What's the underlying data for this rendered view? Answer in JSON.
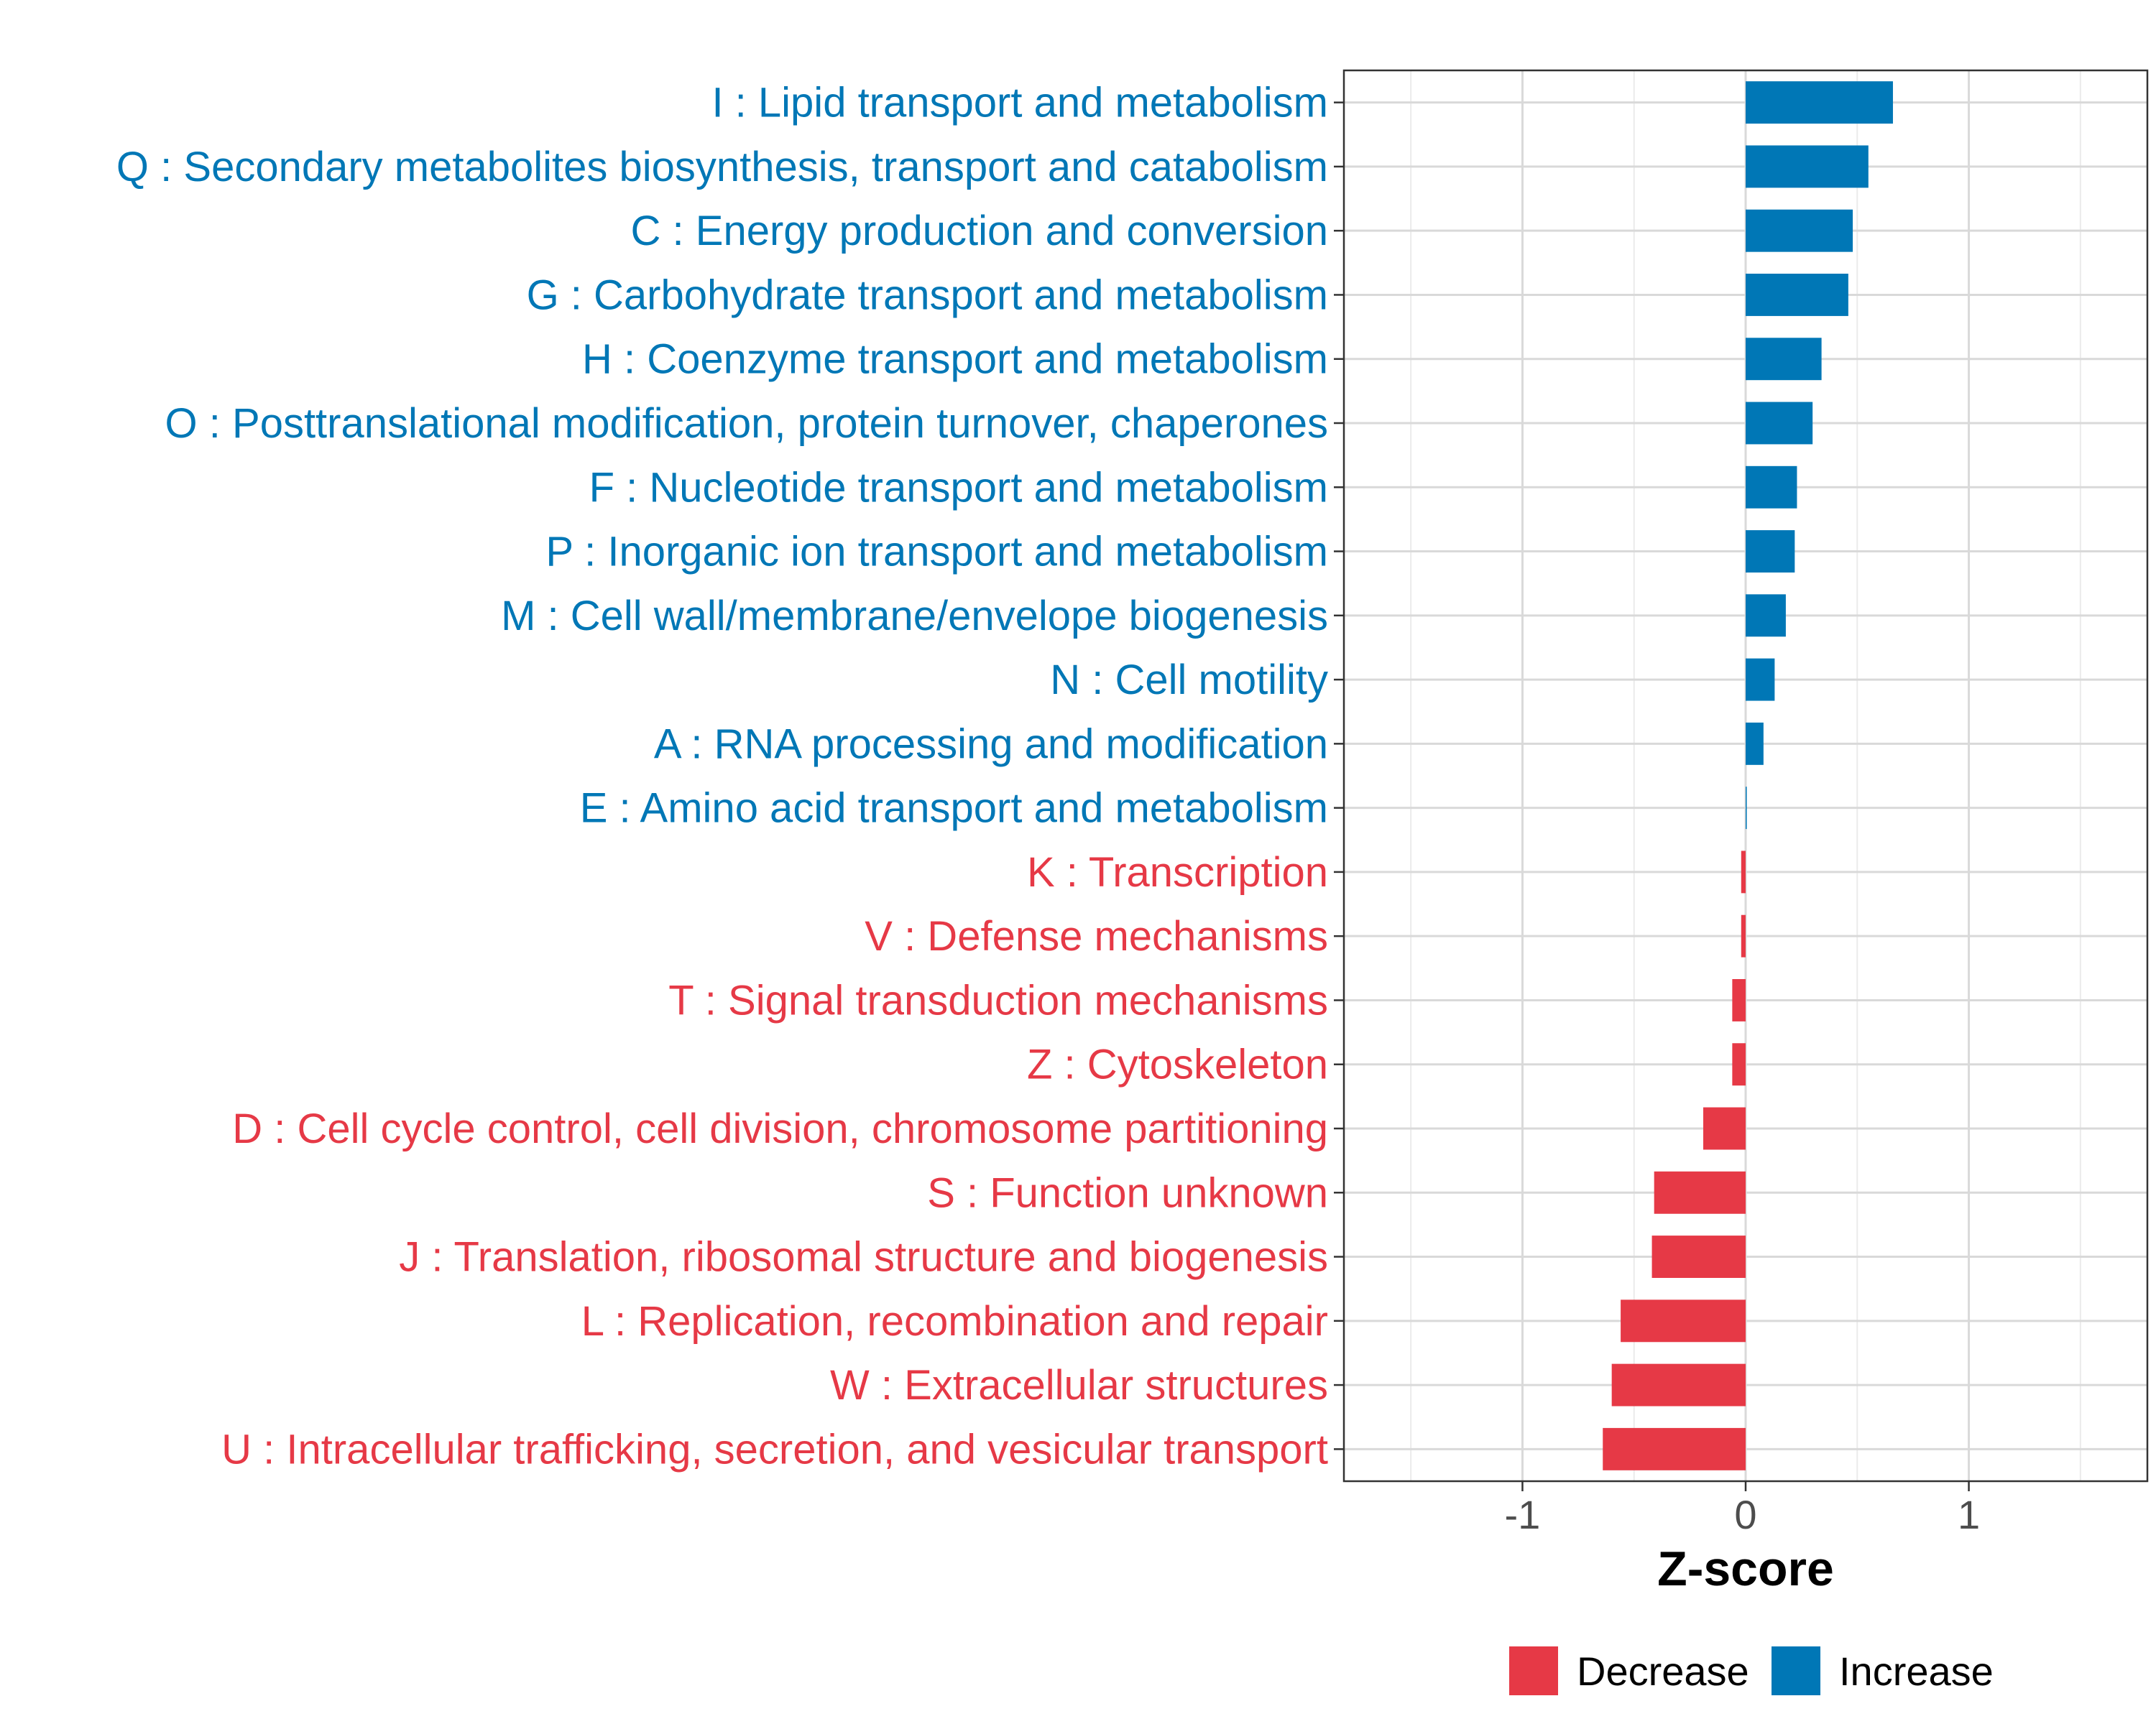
{
  "chart_data": {
    "type": "bar",
    "orientation": "horizontal",
    "xlabel": "Z-score",
    "xlim": [
      -1.8,
      1.8
    ],
    "xticks": [
      -1,
      0,
      1
    ],
    "xtick_labels": [
      "-1",
      "0",
      "1"
    ],
    "grid": true,
    "legend_position": "bottom",
    "legend": [
      {
        "key": "Decrease",
        "label": "Decrease",
        "color": "#E63946"
      },
      {
        "key": "Increase",
        "label": "Increase",
        "color": "#0077B6"
      }
    ],
    "categories": [
      "I : Lipid transport and metabolism",
      "Q : Secondary metabolites biosynthesis, transport and catabolism",
      "C : Energy production and conversion",
      "G : Carbohydrate transport and metabolism",
      "H : Coenzyme transport and metabolism",
      "O : Posttranslational modification, protein turnover, chaperones",
      "F : Nucleotide transport and metabolism",
      "P : Inorganic ion transport and metabolism",
      "M : Cell wall/membrane/envelope biogenesis",
      "N : Cell motility",
      "A : RNA processing and modification",
      "E : Amino acid transport and metabolism",
      "K : Transcription",
      "V : Defense mechanisms",
      "T : Signal transduction mechanisms",
      "Z : Cytoskeleton",
      "D : Cell cycle control, cell division, chromosome partitioning",
      "S : Function unknown",
      "J : Translation, ribosomal structure and biogenesis",
      "L : Replication, recombination and repair",
      "W : Extracellular structures",
      "U : Intracellular trafficking, secretion, and vesicular transport"
    ],
    "values": [
      0.66,
      0.55,
      0.48,
      0.46,
      0.34,
      0.3,
      0.23,
      0.22,
      0.18,
      0.13,
      0.08,
      0.005,
      -0.02,
      -0.02,
      -0.06,
      -0.06,
      -0.19,
      -0.41,
      -0.42,
      -0.56,
      -0.6,
      -0.64
    ],
    "groups": [
      "Increase",
      "Increase",
      "Increase",
      "Increase",
      "Increase",
      "Increase",
      "Increase",
      "Increase",
      "Increase",
      "Increase",
      "Increase",
      "Increase",
      "Decrease",
      "Decrease",
      "Decrease",
      "Decrease",
      "Decrease",
      "Decrease",
      "Decrease",
      "Decrease",
      "Decrease",
      "Decrease"
    ]
  }
}
